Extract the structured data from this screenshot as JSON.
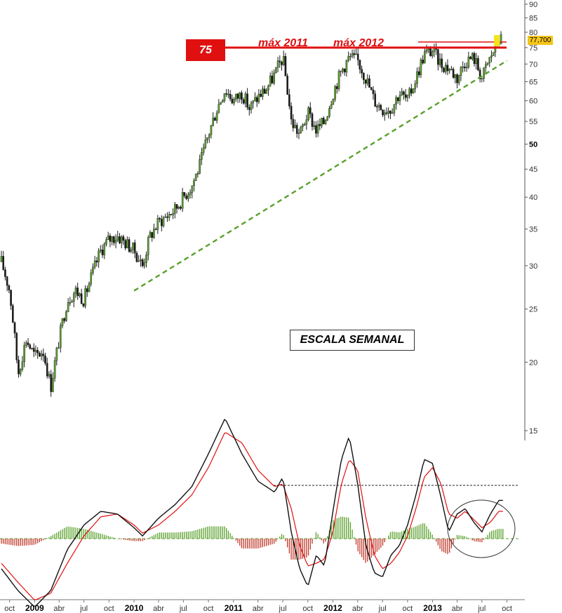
{
  "chart_data": [
    {
      "type": "candlestick",
      "scale": "log",
      "ylim": [
        15,
        90
      ],
      "grid": false,
      "y_ticks": [
        15,
        20,
        25,
        30,
        35,
        40,
        45,
        50,
        55,
        60,
        65,
        70,
        75,
        80,
        85,
        90
      ],
      "y_tick_labels": [
        "15",
        "20",
        "25",
        "30",
        "35",
        "40",
        "45",
        "50",
        "55",
        "60",
        "65",
        "70",
        "75",
        "80",
        "85",
        "90"
      ],
      "bold_tick": "50",
      "last_price_label": "77,700",
      "x_axis": {
        "months": [
          {
            "label": "oct",
            "date": "2008-10"
          },
          {
            "label": "2009",
            "date": "2009-01",
            "year": true
          },
          {
            "label": "abr",
            "date": "2009-04"
          },
          {
            "label": "jul",
            "date": "2009-07"
          },
          {
            "label": "oct",
            "date": "2009-10"
          },
          {
            "label": "2010",
            "date": "2010-01",
            "year": true
          },
          {
            "label": "abr",
            "date": "2010-04"
          },
          {
            "label": "jul",
            "date": "2010-07"
          },
          {
            "label": "oct",
            "date": "2010-10"
          },
          {
            "label": "2011",
            "date": "2011-01",
            "year": true
          },
          {
            "label": "abr",
            "date": "2011-04"
          },
          {
            "label": "jul",
            "date": "2011-07"
          },
          {
            "label": "oct",
            "date": "2011-10"
          },
          {
            "label": "2012",
            "date": "2012-01",
            "year": true
          },
          {
            "label": "abr",
            "date": "2012-04"
          },
          {
            "label": "jul",
            "date": "2012-07"
          },
          {
            "label": "oct",
            "date": "2012-10"
          },
          {
            "label": "2013",
            "date": "2013-01",
            "year": true
          },
          {
            "label": "abr",
            "date": "2013-04"
          },
          {
            "label": "jul",
            "date": "2013-07"
          },
          {
            "label": "oct",
            "date": "2013-10"
          }
        ]
      },
      "price_path": [
        [
          "2008-09",
          30.5
        ],
        [
          "2008-10",
          27
        ],
        [
          "2008-11",
          19
        ],
        [
          "2008-12",
          22
        ],
        [
          "2009-01",
          20.5
        ],
        [
          "2009-02",
          21
        ],
        [
          "2009-03",
          18
        ],
        [
          "2009-04",
          22
        ],
        [
          "2009-05",
          26
        ],
        [
          "2009-06",
          27
        ],
        [
          "2009-07",
          26
        ],
        [
          "2009-08",
          29
        ],
        [
          "2009-09",
          32
        ],
        [
          "2009-10",
          33.5
        ],
        [
          "2009-11",
          34
        ],
        [
          "2009-12",
          33
        ],
        [
          "2010-01",
          32
        ],
        [
          "2010-02",
          30
        ],
        [
          "2010-03",
          34
        ],
        [
          "2010-04",
          36
        ],
        [
          "2010-05",
          37
        ],
        [
          "2010-06",
          38
        ],
        [
          "2010-07",
          40
        ],
        [
          "2010-08",
          42
        ],
        [
          "2010-09",
          46
        ],
        [
          "2010-10",
          52
        ],
        [
          "2010-11",
          58
        ],
        [
          "2010-12",
          63
        ],
        [
          "2011-01",
          60
        ],
        [
          "2011-02",
          62
        ],
        [
          "2011-03",
          58
        ],
        [
          "2011-04",
          61
        ],
        [
          "2011-05",
          63
        ],
        [
          "2011-06",
          67
        ],
        [
          "2011-07",
          72
        ],
        [
          "2011-08",
          55
        ],
        [
          "2011-09",
          52
        ],
        [
          "2011-10",
          57
        ],
        [
          "2011-11",
          53
        ],
        [
          "2011-12",
          55
        ],
        [
          "2012-01",
          62
        ],
        [
          "2012-02",
          68
        ],
        [
          "2012-03",
          72
        ],
        [
          "2012-04",
          71
        ],
        [
          "2012-05",
          66
        ],
        [
          "2012-06",
          60
        ],
        [
          "2012-07",
          58
        ],
        [
          "2012-08",
          58
        ],
        [
          "2012-09",
          62
        ],
        [
          "2012-10",
          60
        ],
        [
          "2012-11",
          66
        ],
        [
          "2012-12",
          73
        ],
        [
          "2013-01",
          74
        ],
        [
          "2013-02",
          70
        ],
        [
          "2013-03",
          69
        ],
        [
          "2013-04",
          66
        ],
        [
          "2013-05",
          71
        ],
        [
          "2013-06",
          72
        ],
        [
          "2013-07",
          66
        ],
        [
          "2013-08",
          72
        ],
        [
          "2013-09",
          77.7
        ]
      ],
      "support_line": {
        "from": [
          "2010-01",
          27
        ],
        "to": [
          "2013-10",
          71
        ]
      },
      "resistance_level": 75,
      "annotations": [
        "75",
        "máx 2011",
        "máx 2012",
        "ESCALA SEMANAL"
      ]
    },
    {
      "type": "macd",
      "zero_line": true,
      "macd_path": [
        [
          "2008-09",
          -22
        ],
        [
          "2008-11",
          -38
        ],
        [
          "2009-01",
          -50
        ],
        [
          "2009-03",
          -38
        ],
        [
          "2009-05",
          -8
        ],
        [
          "2009-07",
          10
        ],
        [
          "2009-09",
          20
        ],
        [
          "2009-11",
          18
        ],
        [
          "2010-01",
          8
        ],
        [
          "2010-02",
          2
        ],
        [
          "2010-04",
          15
        ],
        [
          "2010-06",
          25
        ],
        [
          "2010-08",
          38
        ],
        [
          "2010-10",
          62
        ],
        [
          "2010-12",
          88
        ],
        [
          "2011-02",
          62
        ],
        [
          "2011-04",
          42
        ],
        [
          "2011-06",
          34
        ],
        [
          "2011-07",
          45
        ],
        [
          "2011-08",
          5
        ],
        [
          "2011-09",
          -22
        ],
        [
          "2011-10",
          -35
        ],
        [
          "2011-11",
          -12
        ],
        [
          "2011-12",
          -20
        ],
        [
          "2012-01",
          20
        ],
        [
          "2012-02",
          58
        ],
        [
          "2012-03",
          75
        ],
        [
          "2012-04",
          40
        ],
        [
          "2012-05",
          -5
        ],
        [
          "2012-06",
          -25
        ],
        [
          "2012-07",
          -28
        ],
        [
          "2012-08",
          -12
        ],
        [
          "2012-09",
          -5
        ],
        [
          "2012-10",
          10
        ],
        [
          "2012-11",
          32
        ],
        [
          "2012-12",
          58
        ],
        [
          "2013-01",
          55
        ],
        [
          "2013-02",
          30
        ],
        [
          "2013-03",
          5
        ],
        [
          "2013-04",
          18
        ],
        [
          "2013-05",
          22
        ],
        [
          "2013-06",
          12
        ],
        [
          "2013-07",
          5
        ],
        [
          "2013-08",
          18
        ],
        [
          "2013-09",
          28
        ]
      ],
      "signal_path": [
        [
          "2008-09",
          -18
        ],
        [
          "2008-11",
          -32
        ],
        [
          "2009-01",
          -45
        ],
        [
          "2009-03",
          -40
        ],
        [
          "2009-05",
          -18
        ],
        [
          "2009-07",
          2
        ],
        [
          "2009-09",
          16
        ],
        [
          "2009-11",
          18
        ],
        [
          "2010-01",
          10
        ],
        [
          "2010-02",
          4
        ],
        [
          "2010-04",
          10
        ],
        [
          "2010-06",
          20
        ],
        [
          "2010-08",
          32
        ],
        [
          "2010-10",
          52
        ],
        [
          "2010-12",
          78
        ],
        [
          "2011-02",
          70
        ],
        [
          "2011-04",
          50
        ],
        [
          "2011-06",
          38
        ],
        [
          "2011-07",
          40
        ],
        [
          "2011-08",
          22
        ],
        [
          "2011-09",
          -5
        ],
        [
          "2011-10",
          -20
        ],
        [
          "2011-11",
          -18
        ],
        [
          "2011-12",
          -15
        ],
        [
          "2012-01",
          5
        ],
        [
          "2012-02",
          40
        ],
        [
          "2012-03",
          58
        ],
        [
          "2012-04",
          50
        ],
        [
          "2012-05",
          15
        ],
        [
          "2012-06",
          -12
        ],
        [
          "2012-07",
          -22
        ],
        [
          "2012-08",
          -18
        ],
        [
          "2012-09",
          -10
        ],
        [
          "2012-10",
          2
        ],
        [
          "2012-11",
          22
        ],
        [
          "2012-12",
          45
        ],
        [
          "2013-01",
          52
        ],
        [
          "2013-02",
          40
        ],
        [
          "2013-03",
          18
        ],
        [
          "2013-04",
          15
        ],
        [
          "2013-05",
          20
        ],
        [
          "2013-06",
          14
        ],
        [
          "2013-07",
          8
        ],
        [
          "2013-08",
          12
        ],
        [
          "2013-09",
          20
        ]
      ],
      "macd_color": "#111111",
      "signal_color": "#e01010",
      "hist_pos_color": "#5aa02c",
      "hist_neg_color": "#c0392b"
    }
  ]
}
